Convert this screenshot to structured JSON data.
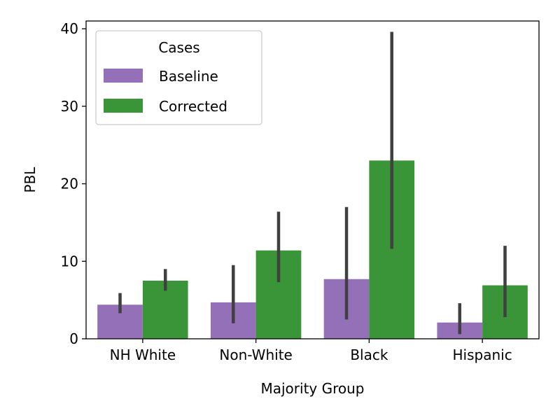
{
  "chart_data": {
    "type": "bar",
    "xlabel": "Majority Group",
    "ylabel": "PBL",
    "categories": [
      "NH White",
      "Non-White",
      "Black",
      "Hispanic"
    ],
    "ylim": [
      0,
      41
    ],
    "yticks": [
      0,
      10,
      20,
      30,
      40
    ],
    "grid": false,
    "legend": {
      "title": "Cases",
      "placement": "top-left"
    },
    "series": [
      {
        "name": "Baseline",
        "color": "#9370b8",
        "values": [
          4.4,
          4.7,
          7.7,
          2.1
        ],
        "error_low": [
          3.3,
          2.0,
          2.5,
          0.6
        ],
        "error_high": [
          5.9,
          9.5,
          17.0,
          4.6
        ]
      },
      {
        "name": "Corrected",
        "color": "#3a9538",
        "values": [
          7.5,
          11.4,
          23.0,
          6.9
        ],
        "error_low": [
          6.2,
          7.3,
          11.6,
          2.8
        ],
        "error_high": [
          9.0,
          16.4,
          39.6,
          12.0
        ]
      }
    ],
    "error_bar_color": "#404040"
  }
}
